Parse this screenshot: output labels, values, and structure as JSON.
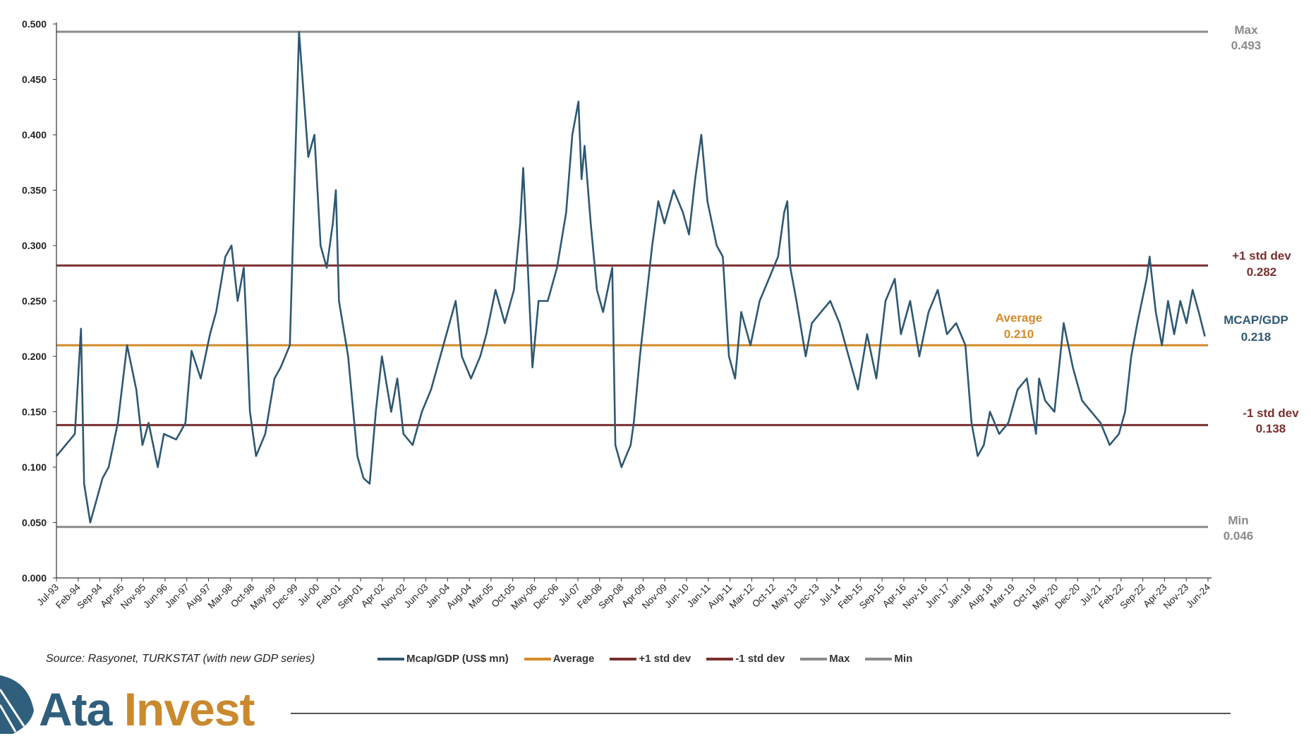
{
  "chart_data": {
    "type": "line",
    "ylim": [
      0,
      0.5
    ],
    "y_ticks": [
      "0.000",
      "0.050",
      "0.100",
      "0.150",
      "0.200",
      "0.250",
      "0.300",
      "0.350",
      "0.400",
      "0.450",
      "0.500"
    ],
    "x_ticks": [
      "Jul-93",
      "Feb-94",
      "Sep-94",
      "Apr-95",
      "Nov-95",
      "Jun-96",
      "Jan-97",
      "Aug-97",
      "Mar-98",
      "Oct-98",
      "May-99",
      "Dec-99",
      "Jul-00",
      "Feb-01",
      "Sep-01",
      "Apr-02",
      "Nov-02",
      "Jun-03",
      "Jan-04",
      "Aug-04",
      "Mar-05",
      "Oct-05",
      "May-06",
      "Dec-06",
      "Jul-07",
      "Feb-08",
      "Sep-08",
      "Apr-09",
      "Nov-09",
      "Jun-10",
      "Jan-11",
      "Aug-11",
      "Mar-12",
      "Oct-12",
      "May-13",
      "Dec-13",
      "Jul-14",
      "Feb-15",
      "Sep-15",
      "Apr-16",
      "Nov-16",
      "Jun-17",
      "Jan-18",
      "Aug-18",
      "Mar-19",
      "Oct-19",
      "May-20",
      "Dec-20",
      "Jul-21",
      "Feb-22",
      "Sep-22",
      "Apr-23",
      "Nov-23",
      "Jun-24"
    ],
    "series": [
      {
        "name": "Mcap/GDP (US$ mn)",
        "color": "#2e5873",
        "x": [
          "1993-07",
          "1994-01",
          "1994-03",
          "1994-04",
          "1994-06",
          "1994-10",
          "1994-12",
          "1995-03",
          "1995-06",
          "1995-09",
          "1995-11",
          "1996-01",
          "1996-04",
          "1996-06",
          "1996-10",
          "1997-01",
          "1997-03",
          "1997-06",
          "1997-09",
          "1997-11",
          "1998-02",
          "1998-04",
          "1998-06",
          "1998-08",
          "1998-09",
          "1998-10",
          "1998-12",
          "1999-03",
          "1999-06",
          "1999-08",
          "1999-11",
          "2000-01",
          "2000-02",
          "2000-05",
          "2000-07",
          "2000-09",
          "2000-11",
          "2001-01",
          "2001-02",
          "2001-03",
          "2001-06",
          "2001-09",
          "2001-11",
          "2002-01",
          "2002-03",
          "2002-05",
          "2002-08",
          "2002-10",
          "2002-12",
          "2003-03",
          "2003-06",
          "2003-09",
          "2003-12",
          "2004-02",
          "2004-05",
          "2004-07",
          "2004-10",
          "2005-01",
          "2005-03",
          "2005-06",
          "2005-09",
          "2005-12",
          "2006-02",
          "2006-03",
          "2006-04",
          "2006-06",
          "2006-08",
          "2006-11",
          "2007-02",
          "2007-05",
          "2007-07",
          "2007-09",
          "2007-10",
          "2007-11",
          "2008-01",
          "2008-03",
          "2008-05",
          "2008-08",
          "2008-09",
          "2008-11",
          "2009-02",
          "2009-03",
          "2009-05",
          "2009-07",
          "2009-09",
          "2009-11",
          "2010-01",
          "2010-04",
          "2010-07",
          "2010-09",
          "2010-11",
          "2011-01",
          "2011-03",
          "2011-06",
          "2011-08",
          "2011-10",
          "2011-12",
          "2012-02",
          "2012-05",
          "2012-08",
          "2012-11",
          "2013-02",
          "2013-04",
          "2013-05",
          "2013-06",
          "2013-08",
          "2013-11",
          "2014-01",
          "2014-04",
          "2014-07",
          "2014-10",
          "2015-01",
          "2015-04",
          "2015-07",
          "2015-10",
          "2016-01",
          "2016-04",
          "2016-06",
          "2016-09",
          "2016-12",
          "2017-03",
          "2017-06",
          "2017-09",
          "2017-12",
          "2018-03",
          "2018-05",
          "2018-07",
          "2018-09",
          "2018-11",
          "2019-02",
          "2019-05",
          "2019-08",
          "2019-11",
          "2020-02",
          "2020-03",
          "2020-05",
          "2020-08",
          "2020-11",
          "2021-02",
          "2021-05",
          "2021-08",
          "2021-11",
          "2022-02",
          "2022-05",
          "2022-07",
          "2022-09",
          "2022-11",
          "2023-02",
          "2023-03",
          "2023-05",
          "2023-07",
          "2023-09",
          "2023-11",
          "2024-01",
          "2024-03",
          "2024-05",
          "2024-07",
          "2024-09"
        ],
        "y": [
          0.11,
          0.13,
          0.225,
          0.085,
          0.05,
          0.09,
          0.1,
          0.14,
          0.21,
          0.17,
          0.12,
          0.14,
          0.1,
          0.13,
          0.125,
          0.14,
          0.205,
          0.18,
          0.22,
          0.24,
          0.29,
          0.3,
          0.25,
          0.28,
          0.22,
          0.15,
          0.11,
          0.13,
          0.18,
          0.19,
          0.21,
          0.4,
          0.493,
          0.38,
          0.4,
          0.3,
          0.28,
          0.32,
          0.35,
          0.25,
          0.2,
          0.11,
          0.09,
          0.085,
          0.15,
          0.2,
          0.15,
          0.18,
          0.13,
          0.12,
          0.15,
          0.17,
          0.2,
          0.22,
          0.25,
          0.2,
          0.18,
          0.2,
          0.22,
          0.26,
          0.23,
          0.26,
          0.32,
          0.37,
          0.31,
          0.19,
          0.25,
          0.25,
          0.28,
          0.33,
          0.4,
          0.43,
          0.36,
          0.39,
          0.32,
          0.26,
          0.24,
          0.28,
          0.12,
          0.1,
          0.12,
          0.14,
          0.2,
          0.25,
          0.3,
          0.34,
          0.32,
          0.35,
          0.33,
          0.31,
          0.36,
          0.4,
          0.34,
          0.3,
          0.29,
          0.2,
          0.18,
          0.24,
          0.21,
          0.25,
          0.27,
          0.29,
          0.33,
          0.34,
          0.28,
          0.25,
          0.2,
          0.23,
          0.24,
          0.25,
          0.23,
          0.2,
          0.17,
          0.22,
          0.18,
          0.25,
          0.27,
          0.22,
          0.25,
          0.2,
          0.24,
          0.26,
          0.22,
          0.23,
          0.21,
          0.14,
          0.11,
          0.12,
          0.15,
          0.13,
          0.14,
          0.17,
          0.18,
          0.13,
          0.18,
          0.16,
          0.15,
          0.23,
          0.19,
          0.16,
          0.15,
          0.14,
          0.12,
          0.13,
          0.15,
          0.2,
          0.23,
          0.27,
          0.29,
          0.24,
          0.21,
          0.25,
          0.22,
          0.25,
          0.23,
          0.26,
          0.24,
          0.218
        ]
      }
    ],
    "reference_lines": [
      {
        "name": "Average",
        "value": 0.21,
        "color": "#d38a2b"
      },
      {
        "name": "+1 std dev",
        "value": 0.282,
        "color": "#7a2f2f"
      },
      {
        "name": "-1 std dev",
        "value": 0.138,
        "color": "#7a2f2f"
      },
      {
        "name": "Max",
        "value": 0.493,
        "color": "#8a8a8a"
      },
      {
        "name": "Min",
        "value": 0.046,
        "color": "#8a8a8a"
      }
    ],
    "right_labels": {
      "max_title": "Max",
      "max_value": "0.493",
      "plus_title": "+1 std  dev",
      "plus_value": "0.282",
      "current_title": "MCAP/GDP",
      "current_value": "0.218",
      "minus_title": "-1 std  dev",
      "minus_value": "0.138",
      "min_title": "Min",
      "min_value": "0.046",
      "avg_title": "Average",
      "avg_value": "0.210"
    },
    "legend": [
      "Mcap/GDP (US$ mn)",
      "Average",
      "+1 std dev",
      "-1 std dev",
      "Max",
      "Min"
    ],
    "legend_position": "bottom",
    "grid": false
  },
  "footer": {
    "source": "Source: Rasyonet, TURKSTAT (with new GDP series)",
    "logo_ata": "Ata",
    "logo_invest": "Invest"
  },
  "colors": {
    "brand_blue": "#2f5f7c",
    "brand_gold": "#c9892e"
  }
}
